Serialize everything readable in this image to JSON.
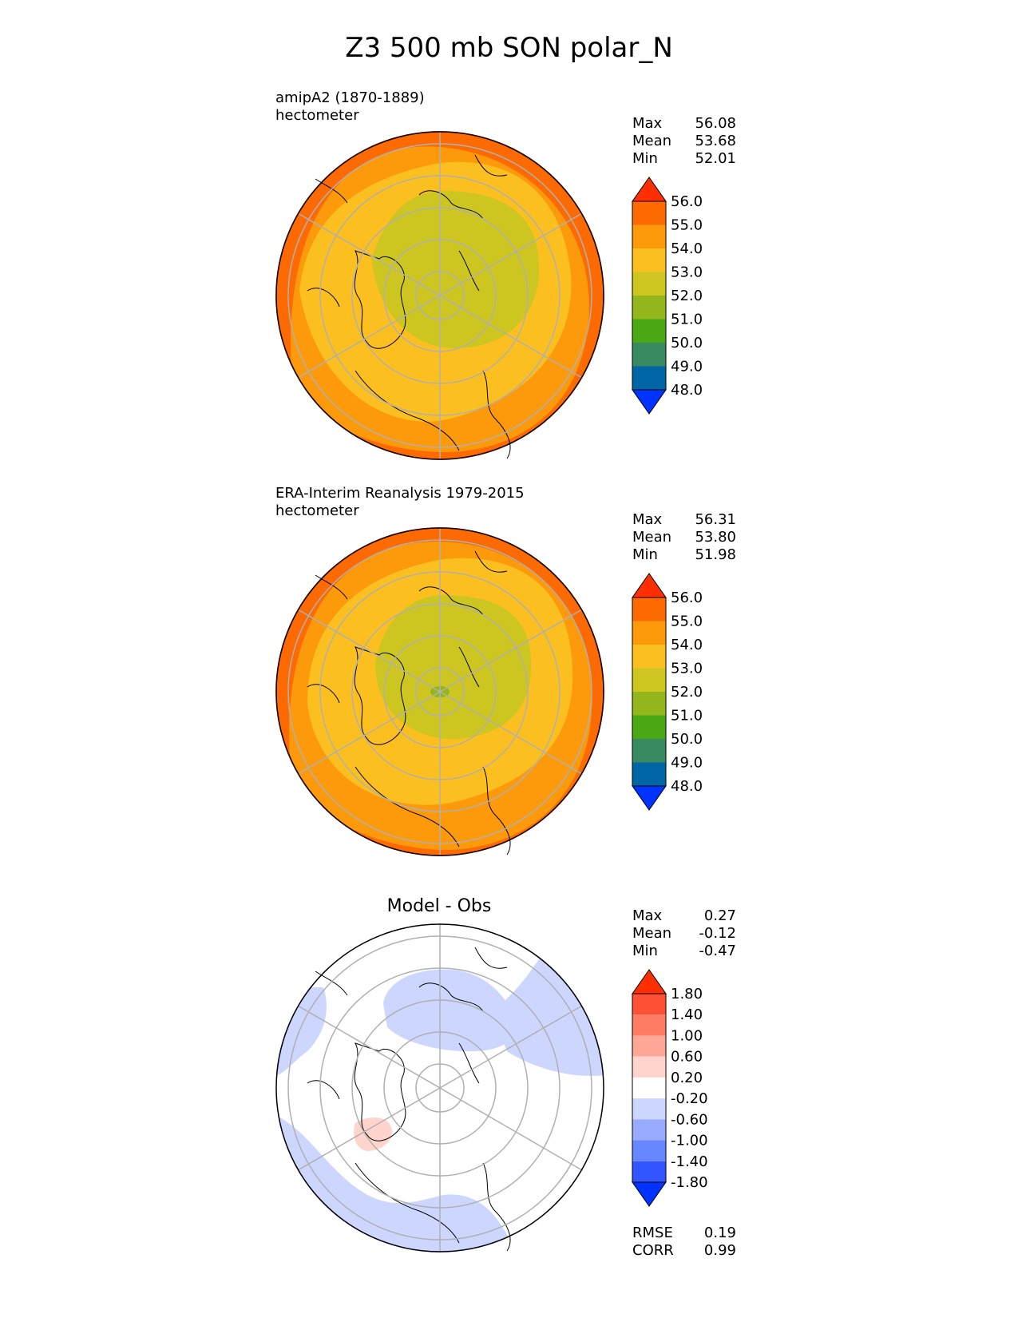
{
  "title": "Z3 500 mb SON polar_N",
  "panels": [
    {
      "label_line1": "amipA2 (1870-1889)",
      "label_line2": "hectometer",
      "heading": "",
      "stats": [
        {
          "name": "Max",
          "value": "56.08"
        },
        {
          "name": "Mean",
          "value": "53.68"
        },
        {
          "name": "Min",
          "value": "52.01"
        }
      ],
      "colorbar": {
        "colors": [
          "#0033ff",
          "#0066a6",
          "#398a60",
          "#4aa815",
          "#93b71a",
          "#cec620",
          "#fcbf20",
          "#fc9a0c",
          "#fd6a02",
          "#fe2f03"
        ],
        "labels": [
          "48.0",
          "49.0",
          "50.0",
          "51.0",
          "52.0",
          "53.0",
          "54.0",
          "55.0",
          "56.0"
        ]
      }
    },
    {
      "label_line1": "ERA-Interim Reanalysis 1979-2015",
      "label_line2": "hectometer",
      "heading": "",
      "stats": [
        {
          "name": "Max",
          "value": "56.31"
        },
        {
          "name": "Mean",
          "value": "53.80"
        },
        {
          "name": "Min",
          "value": "51.98"
        }
      ],
      "colorbar": {
        "colors": [
          "#0033ff",
          "#0066a6",
          "#398a60",
          "#4aa815",
          "#93b71a",
          "#cec620",
          "#fcbf20",
          "#fc9a0c",
          "#fd6a02",
          "#fe2f03"
        ],
        "labels": [
          "48.0",
          "49.0",
          "50.0",
          "51.0",
          "52.0",
          "53.0",
          "54.0",
          "55.0",
          "56.0"
        ]
      }
    },
    {
      "label_line1": "",
      "label_line2": "",
      "heading": "Model - Obs",
      "stats": [
        {
          "name": "Max",
          "value": "0.27"
        },
        {
          "name": "Mean",
          "value": "-0.12"
        },
        {
          "name": "Min",
          "value": "-0.47"
        }
      ],
      "colorbar": {
        "colors": [
          "#0033ff",
          "#3355ff",
          "#6687ff",
          "#99abff",
          "#ccd6ff",
          "#ffffff",
          "#ffd4cc",
          "#ffa797",
          "#ff7b62",
          "#ff4f34",
          "#fe2f03"
        ],
        "labels": [
          "-1.80",
          "-1.40",
          "-1.00",
          "-0.60",
          "-0.20",
          "0.20",
          "0.60",
          "1.00",
          "1.40",
          "1.80"
        ]
      },
      "metrics": [
        {
          "name": "RMSE",
          "value": "0.19"
        },
        {
          "name": "CORR",
          "value": "0.99"
        }
      ]
    }
  ],
  "map_fill_colors": {
    "outer": "#fd6a02",
    "ring2": "#fc9a0c",
    "ring3": "#fcbf20",
    "inner": "#cec620",
    "core": "#93b71a",
    "edge": "#fe2f03",
    "diff_negative": "#ccd6ff",
    "diff_positive": "#ffd4cc",
    "grid": "#b0b0b0"
  }
}
